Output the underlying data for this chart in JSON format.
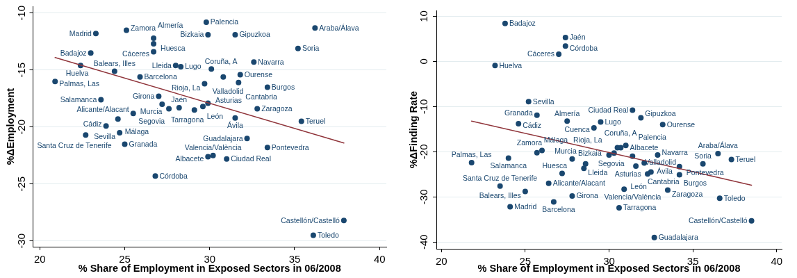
{
  "chart_data": [
    {
      "type": "scatter",
      "xlabel": "% Share of Employment in Exposed Sectors in 06/2008",
      "ylabel": "%ΔEmployment",
      "xlim": [
        19.6,
        40.4
      ],
      "ylim": [
        -30.5,
        -9.4
      ],
      "xticks": [
        20,
        25,
        30,
        35,
        40
      ],
      "yticks": [
        -30,
        -25,
        -20,
        -15,
        -10
      ],
      "grid": "y",
      "marker": "circle",
      "series": [
        {
          "type": "scatter",
          "color": "#1a476f",
          "x": [
            29.8,
            36.2,
            23.3,
            25.1,
            29.9,
            31.5,
            26.7,
            26.7,
            35.2,
            23.0,
            26.7,
            32.6,
            22.4,
            28.0,
            28.3,
            30.1,
            24.4,
            25.9,
            30.8,
            31.8,
            20.9,
            29.7,
            31.7,
            33.4,
            23.6,
            27.0,
            27.2,
            27.6,
            28.2,
            29.1,
            29.6,
            29.9,
            32.8,
            25.5,
            24.6,
            31.5,
            35.4,
            23.9,
            22.7,
            24.7,
            32.2,
            25.0,
            33.4,
            29.9,
            30.2,
            31.0,
            26.8,
            37.9,
            36.1
          ],
          "values": [
            -10.8,
            -11.3,
            -11.8,
            -11.5,
            -11.9,
            -11.9,
            -12.2,
            -12.7,
            -13.1,
            -13.5,
            -13.4,
            -14.3,
            -14.6,
            -14.6,
            -14.7,
            -14.9,
            -15.1,
            -15.6,
            -15.6,
            -15.4,
            -16.0,
            -16.2,
            -16.1,
            -16.5,
            -17.6,
            -17.3,
            -18.0,
            -18.4,
            -18.3,
            -18.5,
            -18.2,
            -17.9,
            -18.4,
            -18.8,
            -19.3,
            -19.2,
            -19.5,
            -19.9,
            -20.7,
            -20.5,
            -21.0,
            -21.5,
            -21.8,
            -22.6,
            -22.5,
            -22.8,
            -24.3,
            -28.2,
            -29.5
          ]
        },
        {
          "type": "line",
          "color": "#90353b",
          "marker": "none",
          "x": [
            20.9,
            37.9
          ],
          "values": [
            -13.9,
            -21.4
          ]
        }
      ],
      "annotations": [
        {
          "text": "Palencia",
          "x": 29.8,
          "y": -10.8
        },
        {
          "text": "Araba/Álava",
          "x": 36.2,
          "y": -11.3
        },
        {
          "text": "Madrid",
          "x": 23.3,
          "y": -11.8
        },
        {
          "text": "Zamora",
          "x": 25.1,
          "y": -11.5
        },
        {
          "text": "Bizkaia",
          "x": 29.9,
          "y": -11.9
        },
        {
          "text": "Gipuzkoa",
          "x": 31.5,
          "y": -11.9
        },
        {
          "text": "Almería",
          "x": 26.7,
          "y": -12.2
        },
        {
          "text": "Huesca",
          "x": 26.7,
          "y": -12.7
        },
        {
          "text": "Soria",
          "x": 35.2,
          "y": -13.1
        },
        {
          "text": "Badajoz",
          "x": 23.0,
          "y": -13.5
        },
        {
          "text": "Cáceres",
          "x": 26.7,
          "y": -13.4
        },
        {
          "text": "Navarra",
          "x": 32.6,
          "y": -14.3
        },
        {
          "text": "Huelva",
          "x": 22.4,
          "y": -14.6
        },
        {
          "text": "Lleida",
          "x": 28.0,
          "y": -14.6
        },
        {
          "text": "Lugo",
          "x": 28.3,
          "y": -14.7
        },
        {
          "text": "Coruña, A",
          "x": 30.1,
          "y": -14.9
        },
        {
          "text": "Balears, Illes",
          "x": 24.4,
          "y": -15.1
        },
        {
          "text": "Barcelona",
          "x": 25.9,
          "y": -15.6
        },
        {
          "text": "Valladolid",
          "x": 30.8,
          "y": -15.6
        },
        {
          "text": "Ourense",
          "x": 31.8,
          "y": -15.4
        },
        {
          "text": "Palmas, Las",
          "x": 20.9,
          "y": -16.0
        },
        {
          "text": "Rioja, La",
          "x": 29.7,
          "y": -16.2
        },
        {
          "text": "Cantabria",
          "x": 31.7,
          "y": -16.1
        },
        {
          "text": "Burgos",
          "x": 33.4,
          "y": -16.5
        },
        {
          "text": "Salamanca",
          "x": 23.6,
          "y": -17.6
        },
        {
          "text": "Girona",
          "x": 27.0,
          "y": -17.3
        },
        {
          "text": "Murcia",
          "x": 27.2,
          "y": -18.0
        },
        {
          "text": "Segovia",
          "x": 27.6,
          "y": -18.4
        },
        {
          "text": "Jaén",
          "x": 28.2,
          "y": -18.3
        },
        {
          "text": "León",
          "x": 29.1,
          "y": -18.5
        },
        {
          "text": "Asturias",
          "x": 29.6,
          "y": -18.2
        },
        {
          "text": "Tarragona",
          "x": 29.9,
          "y": -17.9
        },
        {
          "text": "Zaragoza",
          "x": 32.8,
          "y": -18.4
        },
        {
          "text": "Alicante/Alacant",
          "x": 25.5,
          "y": -18.8
        },
        {
          "text": "Málaga",
          "x": 24.6,
          "y": -19.3
        },
        {
          "text": "Ávila",
          "x": 31.5,
          "y": -19.2
        },
        {
          "text": "Teruel",
          "x": 35.4,
          "y": -19.5
        },
        {
          "text": "Cádiz",
          "x": 23.9,
          "y": -19.9
        },
        {
          "text": "Santa Cruz de Tenerife",
          "x": 22.7,
          "y": -20.7
        },
        {
          "text": "Sevilla",
          "x": 24.7,
          "y": -20.5
        },
        {
          "text": "Guadalajara",
          "x": 32.2,
          "y": -21.0
        },
        {
          "text": "Granada",
          "x": 25.0,
          "y": -21.5
        },
        {
          "text": "Pontevedra",
          "x": 33.4,
          "y": -21.8
        },
        {
          "text": "Albacete",
          "x": 29.9,
          "y": -22.6
        },
        {
          "text": "Valencia/València",
          "x": 30.2,
          "y": -22.5
        },
        {
          "text": "Ciudad Real",
          "x": 31.0,
          "y": -22.8
        },
        {
          "text": "Córdoba",
          "x": 26.8,
          "y": -24.3
        },
        {
          "text": "Castellón/Castelló",
          "x": 37.9,
          "y": -28.2
        },
        {
          "text": "Toledo",
          "x": 36.1,
          "y": -29.5
        }
      ]
    },
    {
      "type": "scatter",
      "xlabel": "% Share of Employment in Exposed Sectors in 06/2008",
      "ylabel": "%ΔFinding Rate",
      "xlim": [
        19.7,
        40.3
      ],
      "ylim": [
        -41.5,
        11.3
      ],
      "xticks": [
        20,
        25,
        30,
        35,
        40
      ],
      "yticks": [
        -40,
        -30,
        -20,
        -10,
        0,
        10
      ],
      "grid": "y",
      "marker": "circle",
      "series": [
        {
          "type": "scatter",
          "color": "#1a476f",
          "x": [
            23.8,
            27.4,
            27.4,
            27.0,
            23.2,
            25.2,
            31.4,
            25.7,
            31.9,
            27.5,
            29.5,
            24.6,
            33.2,
            29.1,
            31.0,
            30.5,
            30.7,
            26.0,
            25.7,
            30.3,
            36.5,
            30.0,
            32.9,
            31.4,
            24.0,
            27.8,
            37.3,
            21.8,
            32.1,
            28.6,
            35.6,
            31.6,
            34.2,
            28.5,
            32.5,
            27.2,
            32.3,
            34.2,
            26.4,
            23.5,
            30.9,
            33.5,
            25.0,
            27.8,
            36.6,
            26.7,
            24.1,
            30.6,
            38.5,
            32.7
          ],
          "values": [
            8.4,
            5.3,
            3.4,
            1.6,
            -0.9,
            -8.9,
            -10.8,
            -11.9,
            -12.5,
            -13.2,
            -13.4,
            -13.8,
            -14.0,
            -14.7,
            -18.6,
            -19.1,
            -19.1,
            -19.7,
            -20.2,
            -20.3,
            -20.4,
            -20.7,
            -20.7,
            -21.0,
            -21.4,
            -21.6,
            -21.7,
            -22.4,
            -22.5,
            -22.7,
            -22.7,
            -23.2,
            -23.3,
            -23.7,
            -24.5,
            -24.8,
            -24.9,
            -25.1,
            -27.0,
            -27.6,
            -28.3,
            -28.5,
            -28.8,
            -29.8,
            -30.3,
            -31.1,
            -32.2,
            -32.4,
            -35.3,
            -39.0
          ]
        },
        {
          "type": "line",
          "color": "#90353b",
          "marker": "none",
          "x": [
            21.8,
            38.5
          ],
          "values": [
            -13.2,
            -27.4
          ]
        }
      ],
      "annotations": [
        {
          "text": "Badajoz",
          "x": 23.8,
          "y": 8.4
        },
        {
          "text": "Jaén",
          "x": 27.4,
          "y": 5.3
        },
        {
          "text": "Córdoba",
          "x": 27.4,
          "y": 3.4
        },
        {
          "text": "Cáceres",
          "x": 27.0,
          "y": 1.6
        },
        {
          "text": "Huelva",
          "x": 23.2,
          "y": -0.9
        },
        {
          "text": "Sevilla",
          "x": 25.2,
          "y": -8.9
        },
        {
          "text": "Ciudad Real",
          "x": 31.4,
          "y": -10.8
        },
        {
          "text": "Granada",
          "x": 25.7,
          "y": -11.9
        },
        {
          "text": "Gipuzkoa",
          "x": 31.9,
          "y": -12.5
        },
        {
          "text": "Almería",
          "x": 27.5,
          "y": -13.2
        },
        {
          "text": "Lugo",
          "x": 29.5,
          "y": -13.4
        },
        {
          "text": "Cádiz",
          "x": 24.6,
          "y": -13.8
        },
        {
          "text": "Ourense",
          "x": 33.2,
          "y": -14.0
        },
        {
          "text": "Cuenca",
          "x": 29.1,
          "y": -14.7
        },
        {
          "text": "Palencia",
          "x": 31.0,
          "y": -18.6
        },
        {
          "text": "Albacete",
          "x": 30.5,
          "y": -19.1
        },
        {
          "text": "Coruña, A",
          "x": 30.7,
          "y": -19.1
        },
        {
          "text": "Zamora",
          "x": 26.0,
          "y": -19.7
        },
        {
          "text": "Málaga",
          "x": 25.7,
          "y": -20.2
        },
        {
          "text": "Bizkaia",
          "x": 30.3,
          "y": -20.3
        },
        {
          "text": "Araba/Álava",
          "x": 36.5,
          "y": -20.4
        },
        {
          "text": "Rioja, La",
          "x": 30.0,
          "y": -20.7
        },
        {
          "text": "Navarra",
          "x": 32.9,
          "y": -20.7
        },
        {
          "text": "Valladolid",
          "x": 31.4,
          "y": -21.0
        },
        {
          "text": "Salamanca",
          "x": 24.0,
          "y": -21.4
        },
        {
          "text": "Murcia",
          "x": 27.8,
          "y": -21.6
        },
        {
          "text": "Teruel",
          "x": 37.3,
          "y": -21.7
        },
        {
          "text": "Palmas, Las",
          "x": 21.8,
          "y": -22.4
        },
        {
          "text": "Ávila",
          "x": 32.1,
          "y": -22.5
        },
        {
          "text": "Segovia",
          "x": 28.6,
          "y": -22.7
        },
        {
          "text": "Soria",
          "x": 35.6,
          "y": -22.7
        },
        {
          "text": "Asturias",
          "x": 31.6,
          "y": -23.2
        },
        {
          "text": "Burgos",
          "x": 34.2,
          "y": -23.3
        },
        {
          "text": "Lleida",
          "x": 28.5,
          "y": -23.7
        },
        {
          "text": "León",
          "x": 32.5,
          "y": -24.5
        },
        {
          "text": "Huesca",
          "x": 27.2,
          "y": -24.8
        },
        {
          "text": "Cantabria",
          "x": 32.3,
          "y": -24.9
        },
        {
          "text": "Pontevedra",
          "x": 34.2,
          "y": -25.1
        },
        {
          "text": "Alicante/Alacant",
          "x": 26.4,
          "y": -27.0
        },
        {
          "text": "Santa Cruz de Tenerife",
          "x": 23.5,
          "y": -27.6
        },
        {
          "text": "Valencia/València",
          "x": 30.9,
          "y": -28.3
        },
        {
          "text": "Zaragoza",
          "x": 33.5,
          "y": -28.5
        },
        {
          "text": "Balears, Illes",
          "x": 25.0,
          "y": -28.8
        },
        {
          "text": "Girona",
          "x": 27.8,
          "y": -29.8
        },
        {
          "text": "Toledo",
          "x": 36.6,
          "y": -30.3
        },
        {
          "text": "Barcelona",
          "x": 26.7,
          "y": -31.1
        },
        {
          "text": "Madrid",
          "x": 24.1,
          "y": -32.2
        },
        {
          "text": "Tarragona",
          "x": 30.6,
          "y": -32.4
        },
        {
          "text": "Castellón/Castelló",
          "x": 38.5,
          "y": -35.3
        },
        {
          "text": "Guadalajara",
          "x": 32.7,
          "y": -39.0
        }
      ]
    }
  ]
}
